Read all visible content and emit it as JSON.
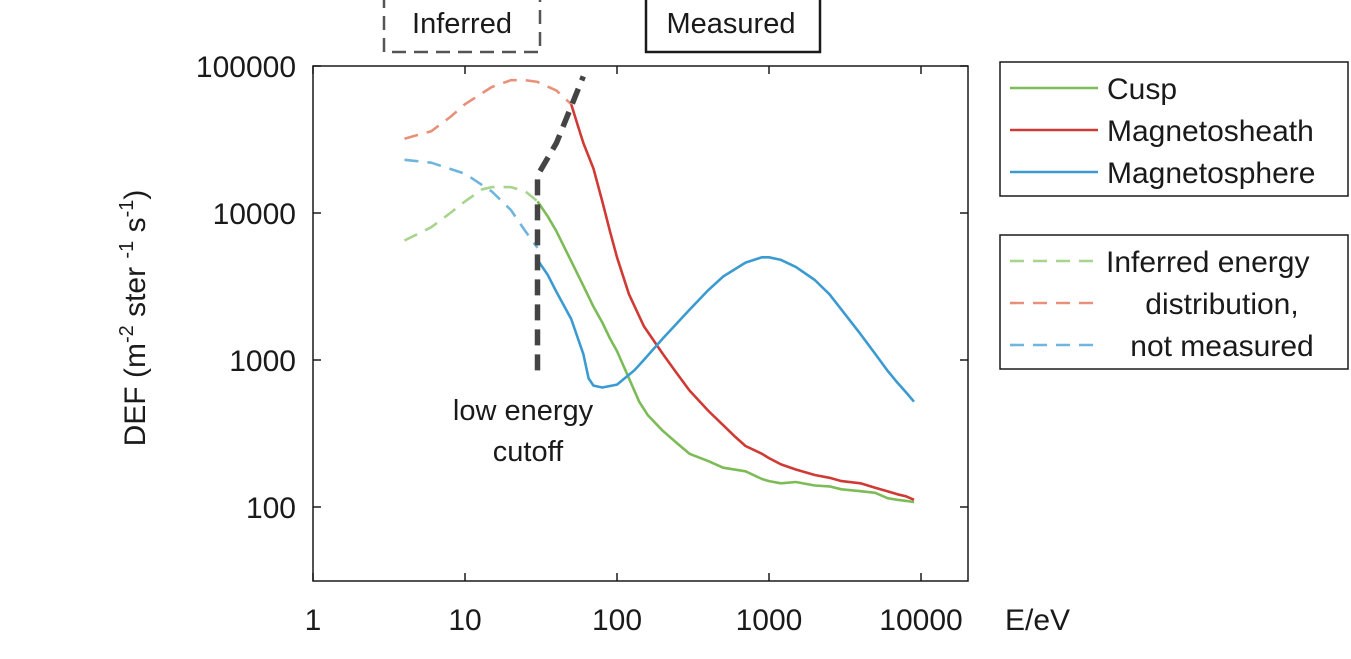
{
  "chart_data": {
    "type": "line",
    "title": "",
    "xlabel": "E/eV",
    "ylabel_parts": {
      "base": "DEF (m",
      "sup1": "-2",
      "mid": " ster ",
      "sup2": "-1",
      "mid2": " s",
      "sup3": "-1",
      "end": ")"
    },
    "xscale": "log",
    "yscale": "log",
    "xlim": [
      1,
      10000
    ],
    "ylim": [
      30,
      100000
    ],
    "xticks": [
      "1",
      "10",
      "100",
      "1000",
      "10000"
    ],
    "xtick_values": [
      1,
      10,
      100,
      1000,
      10000
    ],
    "yticks": [
      "100",
      "1000",
      "10000",
      "100000"
    ],
    "ytick_values": [
      100,
      1000,
      10000,
      100000
    ],
    "grid": false,
    "series": [
      {
        "name": "Cusp",
        "color": "#7dbb57",
        "style": "solid",
        "points": [
          [
            30,
            12000
          ],
          [
            35,
            9500
          ],
          [
            40,
            7500
          ],
          [
            50,
            4700
          ],
          [
            60,
            3200
          ],
          [
            70,
            2300
          ],
          [
            80,
            1800
          ],
          [
            90,
            1400
          ],
          [
            100,
            1150
          ],
          [
            120,
            750
          ],
          [
            140,
            520
          ],
          [
            160,
            420
          ],
          [
            200,
            330
          ],
          [
            250,
            270
          ],
          [
            300,
            230
          ],
          [
            400,
            205
          ],
          [
            500,
            185
          ],
          [
            700,
            175
          ],
          [
            900,
            155
          ],
          [
            1000,
            150
          ],
          [
            1200,
            145
          ],
          [
            1500,
            148
          ],
          [
            2000,
            140
          ],
          [
            2500,
            138
          ],
          [
            3000,
            132
          ],
          [
            4000,
            128
          ],
          [
            5000,
            125
          ],
          [
            6000,
            115
          ],
          [
            7000,
            112
          ],
          [
            8000,
            110
          ],
          [
            9000,
            108
          ]
        ]
      },
      {
        "name": "Magnetosheath",
        "color": "#d03a35",
        "style": "solid",
        "points": [
          [
            50,
            55000
          ],
          [
            55,
            40000
          ],
          [
            60,
            30000
          ],
          [
            70,
            20000
          ],
          [
            80,
            12000
          ],
          [
            90,
            7500
          ],
          [
            100,
            5000
          ],
          [
            120,
            2800
          ],
          [
            150,
            1700
          ],
          [
            200,
            1100
          ],
          [
            250,
            800
          ],
          [
            300,
            620
          ],
          [
            400,
            450
          ],
          [
            500,
            360
          ],
          [
            600,
            300
          ],
          [
            700,
            260
          ],
          [
            900,
            230
          ],
          [
            1000,
            215
          ],
          [
            1200,
            195
          ],
          [
            1500,
            180
          ],
          [
            2000,
            165
          ],
          [
            2500,
            158
          ],
          [
            3000,
            150
          ],
          [
            4000,
            145
          ],
          [
            5000,
            135
          ],
          [
            6000,
            128
          ],
          [
            7000,
            122
          ],
          [
            8000,
            118
          ],
          [
            9000,
            112
          ]
        ]
      },
      {
        "name": "Magnetosphere",
        "color": "#3b9bd1",
        "style": "solid",
        "points": [
          [
            30,
            4800
          ],
          [
            35,
            3800
          ],
          [
            40,
            2900
          ],
          [
            50,
            1900
          ],
          [
            60,
            1100
          ],
          [
            65,
            750
          ],
          [
            70,
            670
          ],
          [
            80,
            650
          ],
          [
            100,
            680
          ],
          [
            130,
            850
          ],
          [
            150,
            1000
          ],
          [
            200,
            1400
          ],
          [
            300,
            2200
          ],
          [
            400,
            3000
          ],
          [
            500,
            3700
          ],
          [
            700,
            4600
          ],
          [
            900,
            5000
          ],
          [
            1000,
            5000
          ],
          [
            1200,
            4800
          ],
          [
            1500,
            4300
          ],
          [
            2000,
            3500
          ],
          [
            2500,
            2800
          ],
          [
            3000,
            2200
          ],
          [
            4000,
            1500
          ],
          [
            5000,
            1100
          ],
          [
            6000,
            850
          ],
          [
            7000,
            700
          ],
          [
            8000,
            600
          ],
          [
            9000,
            520
          ]
        ]
      },
      {
        "name": "Cusp inferred",
        "color": "#a8d48e",
        "style": "dashed",
        "points": [
          [
            4,
            6500
          ],
          [
            6,
            8000
          ],
          [
            8,
            10000
          ],
          [
            10,
            12000
          ],
          [
            13,
            14500
          ],
          [
            15,
            15000
          ],
          [
            20,
            15000
          ],
          [
            25,
            14000
          ],
          [
            30,
            12000
          ]
        ]
      },
      {
        "name": "Magnetosheath inferred",
        "color": "#e8917a",
        "style": "dashed",
        "points": [
          [
            4,
            32000
          ],
          [
            6,
            36000
          ],
          [
            8,
            45000
          ],
          [
            10,
            55000
          ],
          [
            15,
            72000
          ],
          [
            20,
            80000
          ],
          [
            25,
            80000
          ],
          [
            30,
            78000
          ],
          [
            40,
            68000
          ],
          [
            50,
            55000
          ]
        ]
      },
      {
        "name": "Magnetosphere inferred",
        "color": "#6fb5de",
        "style": "dashed",
        "points": [
          [
            4,
            23000
          ],
          [
            6,
            22000
          ],
          [
            10,
            18500
          ],
          [
            15,
            14000
          ],
          [
            20,
            10500
          ],
          [
            25,
            7500
          ],
          [
            30,
            5800
          ]
        ]
      },
      {
        "name": "low energy cutoff",
        "color": "#444444",
        "style": "thickdash",
        "points": [
          [
            30,
            850
          ],
          [
            30,
            18000
          ],
          [
            40,
            30000
          ],
          [
            60,
            85000
          ]
        ]
      }
    ],
    "legend": {
      "placement": "right",
      "box1": [
        {
          "label": "Cusp",
          "color": "#7dbb57"
        },
        {
          "label": "Magnetosheath",
          "color": "#d03a35"
        },
        {
          "label": "Magnetosphere",
          "color": "#3b9bd1"
        }
      ],
      "box2": [
        {
          "label": "Inferred energy",
          "color": "#a8d48e"
        },
        {
          "label": "distribution,",
          "color": "#e8917a"
        },
        {
          "label": "not measured",
          "color": "#6fb5de"
        }
      ]
    },
    "annotations": {
      "inferred_label": "Inferred",
      "measured_label": "Measured",
      "cutoff_line1": "low energy",
      "cutoff_line2": "cutoff"
    }
  }
}
